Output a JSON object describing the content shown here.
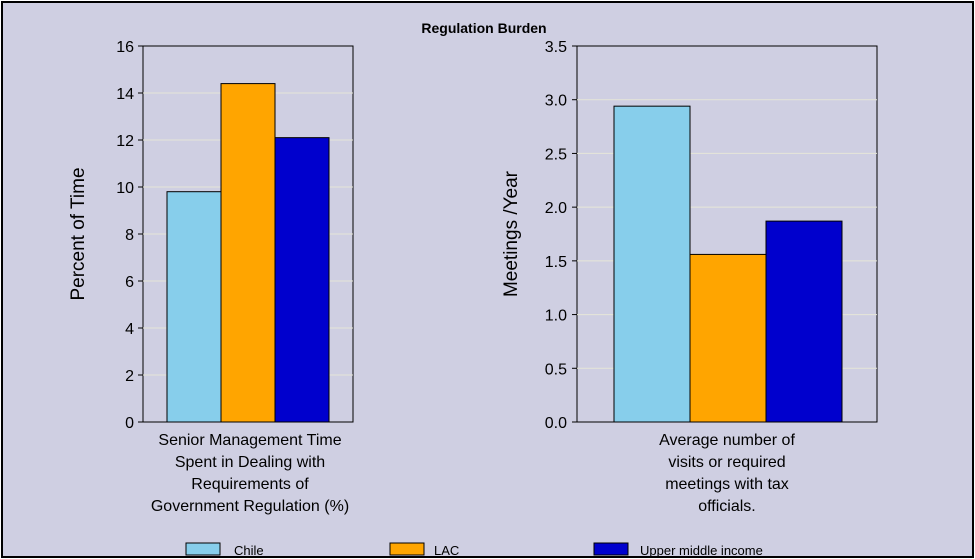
{
  "title": "Regulation Burden",
  "colors": {
    "background": "#CFCFE2",
    "chile": "#87CEEB",
    "lac": "#FFA500",
    "upper_middle_income": "#0000CD"
  },
  "legend": {
    "position": "bottom",
    "items": [
      {
        "label": "Chile",
        "color": "#87CEEB"
      },
      {
        "label": "LAC",
        "color": "#FFA500"
      },
      {
        "label": "Upper middle income",
        "color": "#0000CD"
      }
    ]
  },
  "chart_data": [
    {
      "type": "bar",
      "title": "Regulation Burden",
      "ylabel": "Percent of Time",
      "xlabel_lines": [
        "Senior Management Time",
        "Spent in Dealing with",
        "Requirements of",
        "Government Regulation (%)"
      ],
      "ylim": [
        0,
        16
      ],
      "yticks": [
        "0",
        "2",
        "4",
        "6",
        "8",
        "10",
        "12",
        "14",
        "16"
      ],
      "series": [
        {
          "name": "Chile",
          "values": [
            9.8
          ]
        },
        {
          "name": "LAC",
          "values": [
            14.4
          ]
        },
        {
          "name": "Upper middle income",
          "values": [
            12.1
          ]
        }
      ],
      "grid": true
    },
    {
      "type": "bar",
      "ylabel": "Meetings /Year",
      "xlabel_lines": [
        "Average number of",
        "visits or required",
        "meetings with tax",
        "officials."
      ],
      "ylim": [
        0,
        3.5
      ],
      "yticks": [
        "0.0",
        "0.5",
        "1.0",
        "1.5",
        "2.0",
        "2.5",
        "3.0",
        "3.5"
      ],
      "series": [
        {
          "name": "Chile",
          "values": [
            2.94
          ]
        },
        {
          "name": "LAC",
          "values": [
            1.56
          ]
        },
        {
          "name": "Upper middle income",
          "values": [
            1.87
          ]
        }
      ],
      "grid": true
    }
  ]
}
